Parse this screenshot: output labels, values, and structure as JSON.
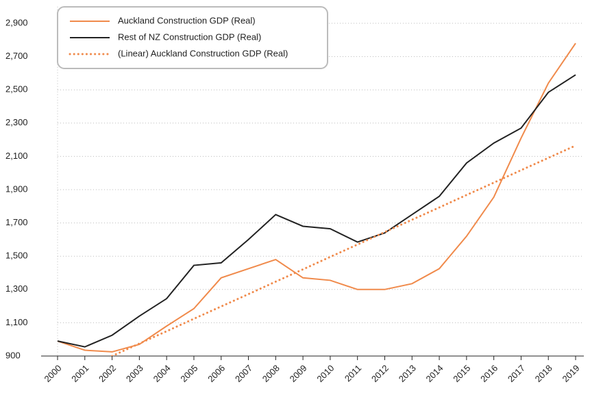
{
  "chart_data": {
    "type": "line",
    "categories": [
      "2000",
      "2001",
      "2002",
      "2003",
      "2004",
      "2005",
      "2006",
      "2007",
      "2008",
      "2009",
      "2010",
      "2011",
      "2012",
      "2013",
      "2014",
      "2015",
      "2016",
      "2017",
      "2018",
      "2019"
    ],
    "series": [
      {
        "name": "Auckland Construction GDP (Real)",
        "color": "#f08a4b",
        "style": "solid",
        "values": [
          990,
          935,
          925,
          970,
          1080,
          1185,
          1370,
          1425,
          1480,
          1370,
          1355,
          1300,
          1300,
          1335,
          1425,
          1620,
          1855,
          2210,
          2540,
          2780
        ]
      },
      {
        "name": "Rest of NZ Construction GDP (Real)",
        "color": "#222222",
        "style": "solid",
        "values": [
          990,
          955,
          1025,
          1140,
          1245,
          1445,
          1460,
          1600,
          1750,
          1680,
          1665,
          1585,
          1640,
          1750,
          1860,
          2060,
          2180,
          2270,
          2485,
          2590
        ]
      },
      {
        "name": "(Linear) Auckland Construction GDP (Real)",
        "color": "#f08a4b",
        "style": "dotted",
        "values": [
          null,
          null,
          900,
          975,
          1049,
          1124,
          1198,
          1272,
          1347,
          1421,
          1496,
          1570,
          1645,
          1719,
          1793,
          1868,
          1942,
          2017,
          2091,
          2165
        ]
      }
    ],
    "ylim": [
      900,
      3000
    ],
    "yticks": [
      900,
      {
        "value": 1100,
        "label": "1,100"
      },
      {
        "value": 1300,
        "label": "1,300"
      },
      {
        "value": 1500,
        "label": "1,500"
      },
      {
        "value": 1700,
        "label": "1,700"
      },
      {
        "value": 1900,
        "label": "1,900"
      },
      {
        "value": 2100,
        "label": "2,100"
      },
      {
        "value": 2300,
        "label": "2,300"
      },
      {
        "value": 2500,
        "label": "2,500"
      },
      {
        "value": 2700,
        "label": "2,700"
      },
      {
        "value": 2900,
        "label": "2,900"
      }
    ],
    "grid": true,
    "legend": "top-left"
  }
}
